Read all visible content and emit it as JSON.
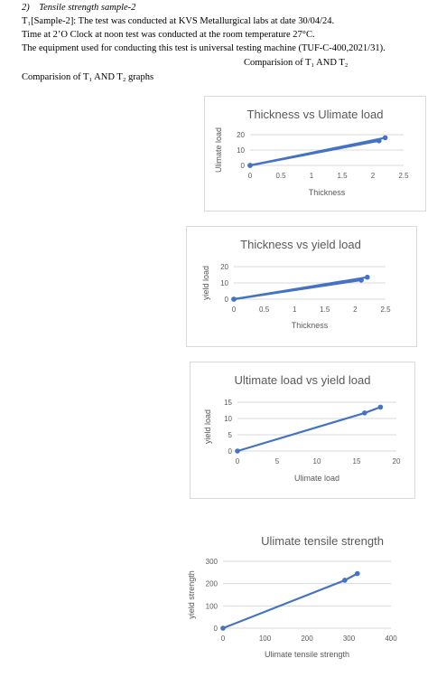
{
  "header": {
    "section_number": "2)",
    "section_title": "Tensile strength sample-2",
    "line1": "T₁[Sample-2]: The test was conducted at KVS Metallurgical labs at date 30/04/24.",
    "line2": "Time at 2’O Clock at noon test was conducted at the room temperature 27°C.",
    "line3": "The equipment used for conducting this test is universal testing machine (TUF-C-400,2021/31).",
    "comparison_center": "Comparision of T₁ AND T₂",
    "comparison_graphs": "Comparision of T₁ AND T₂ graphs"
  },
  "chart_data": [
    {
      "type": "line",
      "title": "Thickness vs Ulimate load",
      "xlabel": "Thickness",
      "ylabel": "Ulimate load",
      "xlim": [
        0,
        2.5
      ],
      "ylim": [
        0,
        20
      ],
      "xticks": [
        "0",
        "0.5",
        "1",
        "1.5",
        "2",
        "2.5"
      ],
      "yticks": [
        "0",
        "10",
        "20"
      ],
      "series": [
        {
          "x": [
            0,
            2.1
          ],
          "y": [
            0,
            16
          ]
        },
        {
          "x": [
            0,
            2.2
          ],
          "y": [
            0,
            18
          ]
        }
      ],
      "color": "#4472c4"
    },
    {
      "type": "line",
      "title": "Thickness vs yield load",
      "xlabel": "Thickness",
      "ylabel": "yield load",
      "xlim": [
        0,
        2.5
      ],
      "ylim": [
        0,
        20
      ],
      "xticks": [
        "0",
        "0.5",
        "1",
        "1.5",
        "2",
        "2.5"
      ],
      "yticks": [
        "0",
        "10",
        "20"
      ],
      "series": [
        {
          "x": [
            0,
            2.1
          ],
          "y": [
            0,
            11.7
          ]
        },
        {
          "x": [
            0,
            2.2
          ],
          "y": [
            0,
            13.5
          ]
        }
      ],
      "color": "#4472c4"
    },
    {
      "type": "line",
      "title": "Ultimate load vs yield load",
      "xlabel": "Ulimate load",
      "ylabel": "yield load",
      "xlim": [
        0,
        20
      ],
      "ylim": [
        0,
        15
      ],
      "xticks": [
        "0",
        "5",
        "10",
        "15",
        "20"
      ],
      "yticks": [
        "0",
        "5",
        "10",
        "15"
      ],
      "series": [
        {
          "x": [
            0,
            16,
            18
          ],
          "y": [
            0,
            11.7,
            13.5
          ]
        }
      ],
      "color": "#4472c4"
    },
    {
      "type": "line",
      "title": "Ulimate tensile strength",
      "xlabel": "Ulimate tensile strength",
      "ylabel": "yield strength",
      "xlim": [
        0,
        400
      ],
      "ylim": [
        0,
        300
      ],
      "xticks": [
        "0",
        "100",
        "200",
        "300",
        "400"
      ],
      "yticks": [
        "0",
        "100",
        "200",
        "300"
      ],
      "series": [
        {
          "x": [
            0,
            290,
            320
          ],
          "y": [
            0,
            215,
            245
          ]
        }
      ],
      "color": "#4472c4"
    }
  ]
}
